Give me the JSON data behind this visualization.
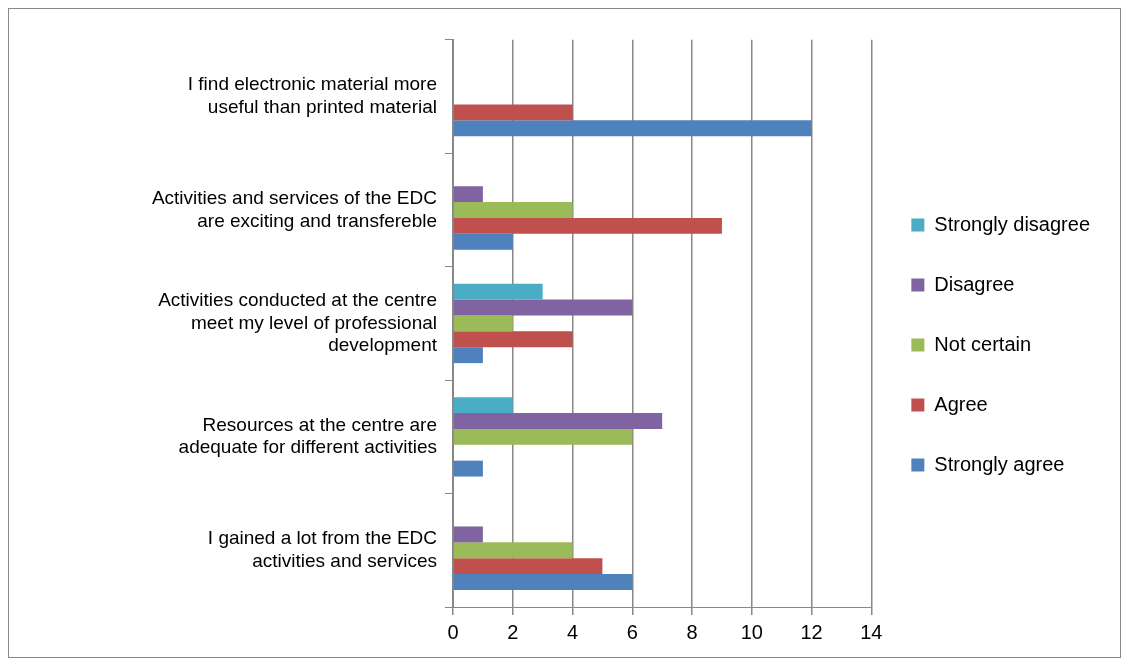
{
  "chart_data": {
    "type": "bar",
    "orientation": "horizontal",
    "categories": [
      "I find electronic material more useful than printed material",
      "Activities and services of the EDC are exciting and transfereble",
      "Activities conducted at the centre meet my level of professional development",
      "Resources at the centre are adequate for different activities",
      "I gained a lot from the EDC activities and services"
    ],
    "series": [
      {
        "name": "Strongly disagree",
        "color": "#4bacc6",
        "values": [
          0,
          0,
          3,
          2,
          0
        ]
      },
      {
        "name": "Disagree",
        "color": "#8064a2",
        "values": [
          0,
          1,
          6,
          7,
          1
        ]
      },
      {
        "name": "Not certain",
        "color": "#9bbb59",
        "values": [
          0,
          4,
          2,
          6,
          4
        ]
      },
      {
        "name": "Agree",
        "color": "#c0504d",
        "values": [
          4,
          9,
          4,
          0,
          5
        ]
      },
      {
        "name": "Strongly agree",
        "color": "#4f81bd",
        "values": [
          12,
          2,
          1,
          1,
          6
        ]
      }
    ],
    "xlim": [
      0,
      14
    ],
    "xticks": [
      0,
      2,
      4,
      6,
      8,
      10,
      12,
      14
    ],
    "grid": "x",
    "legend": "right"
  }
}
